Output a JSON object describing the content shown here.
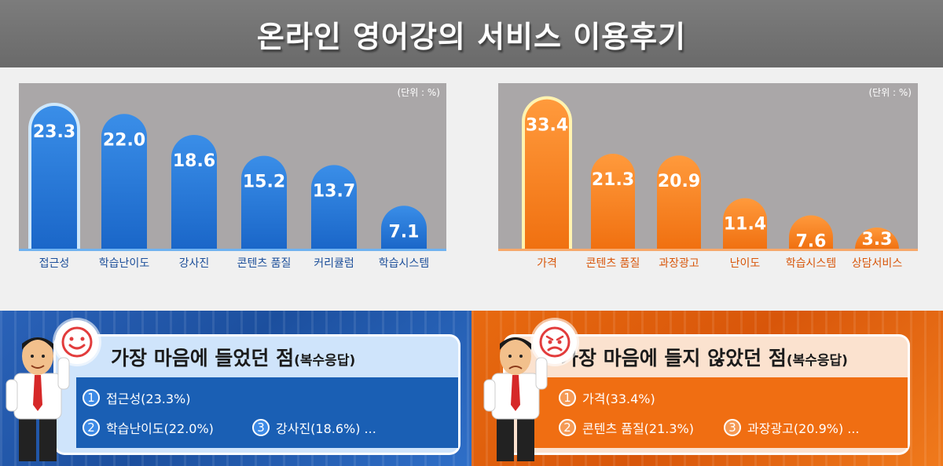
{
  "header": {
    "title": "온라인 영어강의 서비스 이용후기"
  },
  "colors": {
    "blue_bar": "#1a66c8",
    "orange_bar": "#f07010",
    "plot_bg": "#aaa7a8",
    "highlight_blue": "#cfe8fb",
    "highlight_orange": "#fff3b0"
  },
  "chart_data": [
    {
      "type": "bar",
      "unit_label": "(단위 : %)",
      "categories": [
        "접근성",
        "학습난이도",
        "강사진",
        "콘텐츠 품질",
        "커리큘럼",
        "학습시스템"
      ],
      "values": [
        23.3,
        22.0,
        18.6,
        15.2,
        13.7,
        7.1
      ],
      "value_labels": [
        "23.3",
        "22.0",
        "18.6",
        "15.2",
        "13.7",
        "7.1"
      ],
      "ylim": [
        0,
        27
      ],
      "color": "#1a66c8",
      "highlight_index": 0
    },
    {
      "type": "bar",
      "unit_label": "(단위 : %)",
      "categories": [
        "가격",
        "콘텐츠 품질",
        "과장광고",
        "난이도",
        "학습시스템",
        "상담서비스"
      ],
      "values": [
        33.4,
        21.3,
        20.9,
        11.4,
        7.6,
        3.3
      ],
      "value_labels": [
        "33.4",
        "21.3",
        "20.9",
        "11.4",
        "7.6",
        "3.3"
      ],
      "ylim": [
        0,
        37
      ],
      "color": "#f07010",
      "highlight_index": 0
    }
  ],
  "liked": {
    "title": "가장 마음에 들었던 점",
    "title_suffix": "(복수응답)",
    "items": [
      {
        "num": "1",
        "text": "접근성(23.3%)"
      },
      {
        "num": "2",
        "text": "학습난이도(22.0%)"
      },
      {
        "num": "3",
        "text": "강사진(18.6%) ..."
      }
    ]
  },
  "disliked": {
    "title": "가장 마음에 들지 않았던 점",
    "title_suffix": "(복수응답)",
    "items": [
      {
        "num": "1",
        "text": "가격(33.4%)"
      },
      {
        "num": "2",
        "text": "콘텐츠 품질(21.3%)"
      },
      {
        "num": "3",
        "text": "과장광고(20.9%) ..."
      }
    ]
  }
}
